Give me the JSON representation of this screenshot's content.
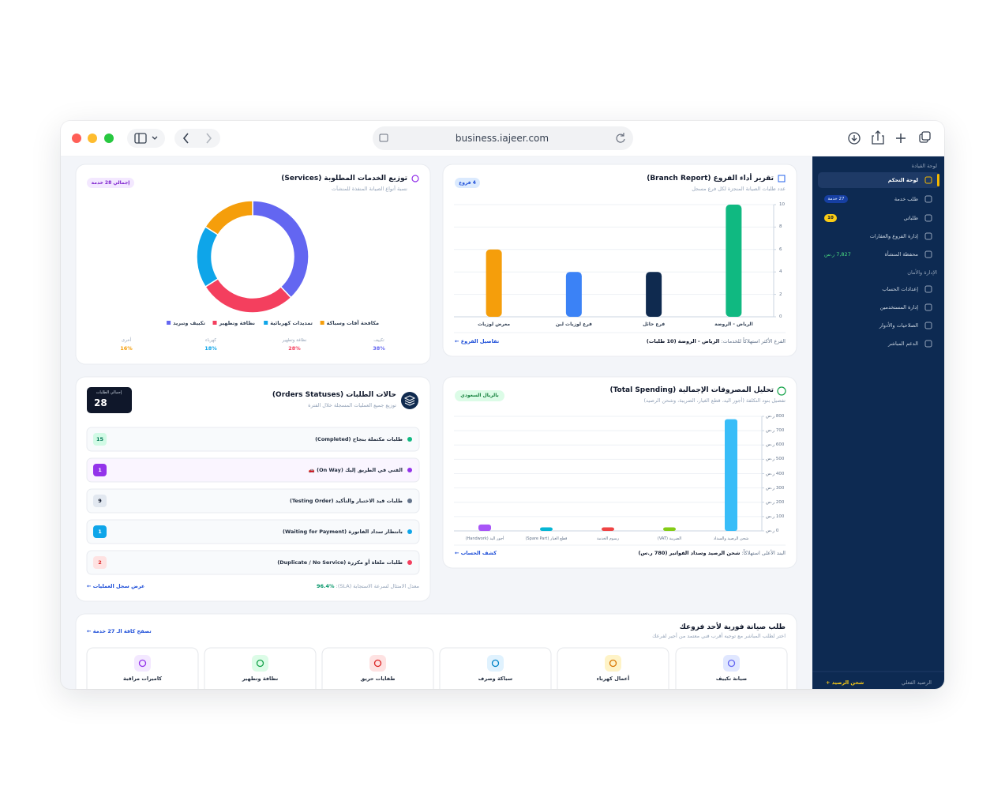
{
  "browser": {
    "url": "business.iajeer.com"
  },
  "sidebar": {
    "groups": [
      {
        "title": "لوحة القيادة",
        "items": [
          {
            "label": "لوحة التحكم"
          },
          {
            "label": "طلب خدمة",
            "badge": "27 خدمة"
          },
          {
            "label": "طلباتي",
            "badge": "10"
          },
          {
            "label": "إدارة الفروع والعقارات"
          },
          {
            "label": "محفظة المنشأة",
            "badge": "7,827 ر.س"
          }
        ]
      },
      {
        "title": "الإدارة والأمان",
        "items": [
          {
            "label": "إعدادات الحساب"
          },
          {
            "label": "إدارة المستخدمين"
          },
          {
            "label": "الصلاحيات والأدوار"
          },
          {
            "label": "الدعم المباشر"
          }
        ]
      }
    ],
    "balance_label": "الرصيد الفعلي",
    "topup": "شحن الرصيد +"
  },
  "services": {
    "title": "توزيع الخدمات المطلوبة (Services)",
    "subtitle": "نسبة أنواع الصيانة المنفذة للمنشآت",
    "badge": "إجمالي 28 خدمة",
    "chart": {
      "type": "pie",
      "categories": [
        "تكييف وتبريد",
        "نظافة وتطهير",
        "تمديدات كهربائية",
        "مكافحة آفات وسباكة"
      ],
      "values": [
        38,
        28,
        18,
        16
      ],
      "value_labels": [
        "38%",
        "28%",
        "18%",
        "16%"
      ],
      "colors": [
        "#6366f1",
        "#f43f5e",
        "#0ea5e9",
        "#f59e0b"
      ]
    },
    "stats_labels": [
      "تكييف",
      "نظافة وتطهير",
      "كهرباء",
      "أخرى"
    ]
  },
  "branches": {
    "title": "تقرير أداء الفروع (Branch Report)",
    "subtitle": "عدد طلبات الصيانة المنجزة لكل فرع مسجل",
    "badge": "4 فروع",
    "chart": {
      "type": "bar",
      "categories": [
        "الرياض - الروضة",
        "فرع حائل",
        "فرع لوزيات لبن",
        "معرض لوزيات"
      ],
      "values": [
        10,
        4,
        4,
        6
      ],
      "colors": [
        "#10b981",
        "#0f2a4f",
        "#3b82f6",
        "#f59e0b"
      ],
      "ylim": [
        0,
        10
      ],
      "yticks": [
        0,
        2,
        4,
        6,
        8,
        10
      ],
      "grid": true
    },
    "footer_label": "الفرع الأكثر استهلاكاً للخدمات:",
    "footer_value": "الرياض - الروضة (10 طلبات)",
    "link": "تفاصيل الفروع ←"
  },
  "orders": {
    "title": "حالات الطلبات (Orders Statuses)",
    "subtitle": "توزيع جميع العمليات المسجلة خلال الفترة",
    "total_label": "إجمالي الطلبات",
    "total": 28,
    "rows": [
      {
        "label": "طلبات مكتملة بنجاح (Completed)",
        "count": 15
      },
      {
        "label": "الفني في الطريق إليك (On Way) 🚗",
        "count": 1
      },
      {
        "label": "طلبات قيد الاختبار والتأكيد (Testing Order)",
        "count": 9
      },
      {
        "label": "بانتظار سداد الفاتورة (Waiting for Payment)",
        "count": 1
      },
      {
        "label": "طلبات ملغاة أو مكررة (Duplicate / No Service)",
        "count": 2
      }
    ],
    "colors": [
      "#10b981",
      "#9333ea",
      "#64748b",
      "#0ea5e9",
      "#f43f5e"
    ],
    "footer_label": "معدل الامتثال لسرعة الاستجابة (SLA):",
    "footer_value": "96.4%",
    "link": "عرض سجل العمليات ←"
  },
  "spending": {
    "title": "تحليل المصروفات الإجمالية (Total Spending)",
    "subtitle": "تفصيل بنود التكلفة (أجور اليد، قطع الغيار، الضريبة، وشحن الرصيد)",
    "badge": "بالريال السعودي",
    "chart": {
      "type": "bar",
      "categories": [
        "شحن الرصيد والسداد",
        "الضريبة (VAT)",
        "رسوم الخدمة",
        "قطع الغيار (Spare Part)",
        "أجور اليد (Handwork)"
      ],
      "values": [
        780,
        25,
        25,
        25,
        45
      ],
      "colors": [
        "#38bdf8",
        "#84cc16",
        "#ef4444",
        "#06b6d4",
        "#a855f7"
      ],
      "ylim": [
        0,
        800
      ],
      "yticks": [
        {
          "value": 0,
          "label": "0 ر.س"
        },
        {
          "value": 100,
          "label": "100 ر.س"
        },
        {
          "value": 200,
          "label": "200 ر.س"
        },
        {
          "value": 300,
          "label": "300 ر.س"
        },
        {
          "value": 400,
          "label": "400 ر.س"
        },
        {
          "value": 500,
          "label": "500 ر.س"
        },
        {
          "value": 600,
          "label": "600 ر.س"
        },
        {
          "value": 700,
          "label": "700 ر.س"
        },
        {
          "value": 800,
          "label": "800 ر.س"
        }
      ],
      "grid": true
    },
    "footer_label": "البند الأعلى استهلاكاً:",
    "footer_value": "شحن الرصيد وسداد الفواتير (780 ر.س)",
    "link": "كشف الحساب ←"
  },
  "quick": {
    "title": "طلب صيانة فورية لأحد فروعك",
    "subtitle": "اختر لطلب المباشر مع توجيه أقرب فني معتمد من أجير لفرعك",
    "link": "تصفح كافة الـ 27 خدمة ←",
    "services": [
      "صيانة تكييف",
      "أعمال كهرباء",
      "سباكة وصرف",
      "طفايات حريق",
      "نظافة وتطهير",
      "كاميرات مراقبة"
    ]
  }
}
